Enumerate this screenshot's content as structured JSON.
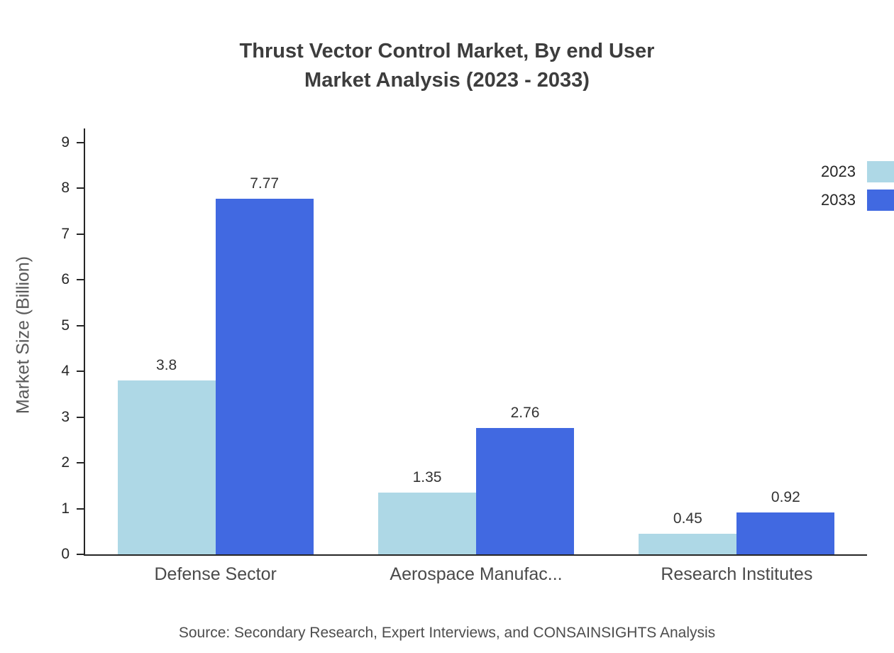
{
  "title": {
    "line1": "Thrust Vector Control Market, By end User",
    "line2": "Market Analysis (2023 - 2033)"
  },
  "source": "Source: Secondary Research, Expert Interviews, and CONSAINSIGHTS Analysis",
  "chart_data": {
    "type": "bar",
    "title": "Thrust Vector Control Market, By end User Market Analysis (2023 - 2033)",
    "categories": [
      "Defense Sector",
      "Aerospace Manufac...",
      "Research Institutes"
    ],
    "series": [
      {
        "name": "2023",
        "color": "#aed8e6",
        "values": [
          3.8,
          1.35,
          0.45
        ]
      },
      {
        "name": "2033",
        "color": "#4169e1",
        "values": [
          7.77,
          2.76,
          0.92
        ]
      }
    ],
    "xlabel": "",
    "ylabel": "Market Size (Billion)",
    "ylim": [
      0,
      9
    ],
    "yticks": [
      0,
      1,
      2,
      3,
      4,
      5,
      6,
      7,
      8,
      9
    ],
    "grid": false,
    "legend_position": "top-right"
  }
}
